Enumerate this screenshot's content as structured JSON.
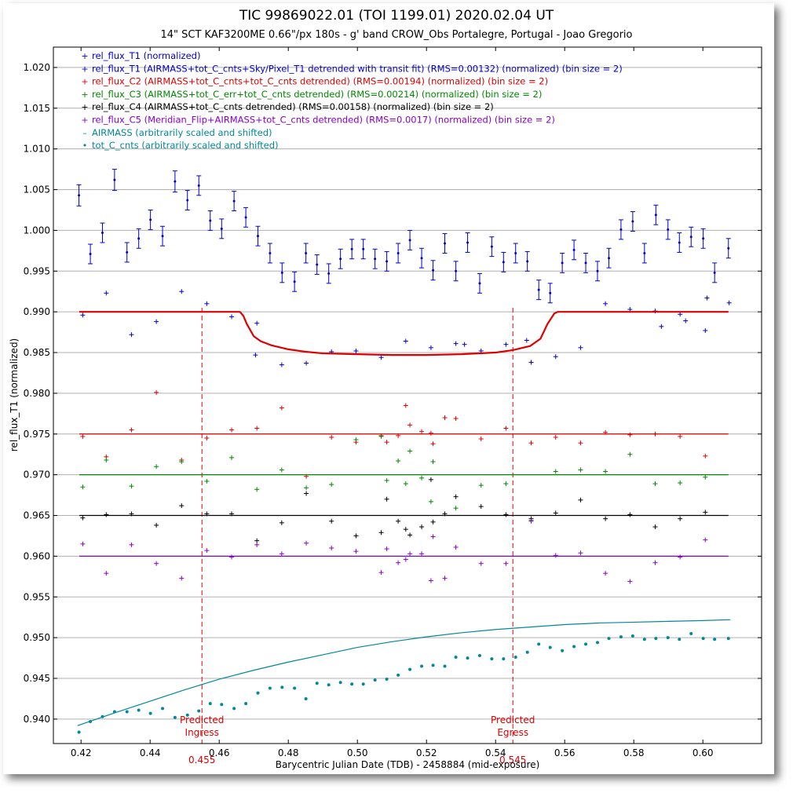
{
  "chart_data": {
    "type": "scatter",
    "title": "TIC 99869022.01 (TOI 1199.01)  2020.02.04 UT",
    "subtitle": "14\" SCT KAF3200ME 0.66\"/px 180s - g' band CROW_Obs Portalegre, Portugal - Joao Gregorio",
    "xlabel": "Barycentric Julian Date (TDB) - 2458884 (mid-exposure)",
    "ylabel": "rel_flux_T1 (normalized)",
    "xlim": [
      0.412,
      0.617
    ],
    "ylim": [
      0.937,
      1.0225
    ],
    "grid": true,
    "legend_position": "top-left",
    "xticks": [
      "0.42",
      "0.44",
      "0.46",
      "0.48",
      "0.50",
      "0.52",
      "0.54",
      "0.56",
      "0.58",
      "0.60"
    ],
    "yticks": [
      "0.940",
      "0.945",
      "0.950",
      "0.955",
      "0.960",
      "0.965",
      "0.970",
      "0.975",
      "0.980",
      "0.985",
      "0.990",
      "0.995",
      "1.000",
      "1.005",
      "1.010",
      "1.015",
      "1.020"
    ],
    "ingress": {
      "x": 0.455,
      "label_line1": "Predicted",
      "label_line2": "Ingress",
      "value_label": "0.455"
    },
    "egress": {
      "x": 0.545,
      "label_line1": "Predicted",
      "label_line2": "Egress",
      "value_label": "0.545"
    },
    "x_raw": [
      0.4205,
      0.4273,
      0.4346,
      0.4418,
      0.4491,
      0.4564,
      0.4636,
      0.4709,
      0.4781,
      0.4852,
      0.4925,
      0.4996,
      0.5069,
      0.514,
      0.5213,
      0.5285,
      0.5358,
      0.543,
      0.5503,
      0.5574,
      0.5646,
      0.5718,
      0.5789,
      0.5862,
      0.5934,
      0.6007
    ],
    "x_binned": [
      0.4194,
      0.4227,
      0.4262,
      0.4297,
      0.4333,
      0.4367,
      0.4401,
      0.4436,
      0.4472,
      0.4508,
      0.4541,
      0.4574,
      0.4607,
      0.4643,
      0.4677,
      0.4712,
      0.4747,
      0.4782,
      0.4818,
      0.4851,
      0.4883,
      0.4917,
      0.4951,
      0.4984,
      0.5017,
      0.5051,
      0.5085,
      0.5118,
      0.5152,
      0.5186,
      0.5219,
      0.5253,
      0.5285,
      0.5319,
      0.5354,
      0.5389,
      0.5423,
      0.5458,
      0.5492,
      0.5525,
      0.5558,
      0.5593,
      0.5627,
      0.5661,
      0.5695,
      0.5728,
      0.5763,
      0.5797,
      0.5831,
      0.5864,
      0.5899,
      0.5932,
      0.5966,
      0.6001,
      0.6034,
      0.6074
    ],
    "x_airmass": [
      0.419,
      0.43,
      0.44,
      0.45,
      0.46,
      0.47,
      0.48,
      0.49,
      0.5,
      0.51,
      0.52,
      0.53,
      0.54,
      0.55,
      0.56,
      0.57,
      0.58,
      0.59,
      0.6,
      0.608
    ],
    "x_totc": [
      0.4194,
      0.4227,
      0.4262,
      0.4297,
      0.4333,
      0.4367,
      0.4401,
      0.4436,
      0.4472,
      0.4508,
      0.4541,
      0.4574,
      0.4607,
      0.4643,
      0.4677,
      0.4712,
      0.4747,
      0.4782,
      0.4818,
      0.4851,
      0.4883,
      0.4917,
      0.4951,
      0.4984,
      0.5017,
      0.5051,
      0.5085,
      0.5118,
      0.5152,
      0.5186,
      0.5219,
      0.5253,
      0.5285,
      0.5319,
      0.5354,
      0.5389,
      0.5423,
      0.5458,
      0.5492,
      0.5525,
      0.5558,
      0.5593,
      0.5627,
      0.5661,
      0.5695,
      0.5728,
      0.5763,
      0.5797,
      0.5831,
      0.5864,
      0.5899,
      0.5932,
      0.5966,
      0.6001,
      0.6034,
      0.6074
    ],
    "x_model": [
      0.4195,
      0.455,
      0.466,
      0.467,
      0.468,
      0.47,
      0.472,
      0.475,
      0.48,
      0.485,
      0.49,
      0.5,
      0.51,
      0.52,
      0.53,
      0.54,
      0.545,
      0.55,
      0.553,
      0.555,
      0.557,
      0.558,
      0.6074
    ],
    "series": [
      {
        "name": "rel_flux_T1 (normalized)",
        "color": "#0000cc",
        "marker": "errorbar",
        "values": [
          1.0043,
          0.9971,
          0.9997,
          1.0062,
          0.9973,
          0.999,
          1.0013,
          0.9993,
          1.006,
          1.0037,
          1.0055,
          1.0012,
          1.0002,
          1.0036,
          1.0016,
          0.9993,
          0.9972,
          0.9948,
          0.9937,
          0.9972,
          0.9958,
          0.9947,
          0.9965,
          0.9977,
          0.9977,
          0.9965,
          0.9962,
          0.9972,
          0.9988,
          0.9966,
          0.9951,
          0.9984,
          0.995,
          0.9985,
          0.9935,
          0.998,
          0.9961,
          0.9972,
          0.9962,
          0.9927,
          0.9923,
          0.996,
          0.9976,
          0.996,
          0.995,
          0.9966,
          1.0001,
          1.0011,
          0.9972,
          1.0019,
          1.0001,
          0.9985,
          0.9992,
          0.999,
          0.9948,
          0.9978
        ],
        "errors": [
          0.0013,
          0.0012,
          0.0012,
          0.0013,
          0.0012,
          0.0012,
          0.0012,
          0.0012,
          0.0013,
          0.0012,
          0.0012,
          0.0012,
          0.0012,
          0.0012,
          0.0012,
          0.0012,
          0.0012,
          0.0012,
          0.0012,
          0.0012,
          0.0012,
          0.0012,
          0.0012,
          0.0012,
          0.0012,
          0.0012,
          0.0012,
          0.0012,
          0.0012,
          0.0012,
          0.0012,
          0.0012,
          0.0012,
          0.0012,
          0.0012,
          0.0012,
          0.0012,
          0.0012,
          0.0012,
          0.0012,
          0.0012,
          0.0012,
          0.0012,
          0.0012,
          0.0012,
          0.0012,
          0.0012,
          0.0012,
          0.0012,
          0.0012,
          0.0012,
          0.0012,
          0.0012,
          0.0012,
          0.0012,
          0.0012
        ]
      },
      {
        "name": "rel_flux_T1 (AIRMASS+tot_C_cnts+Sky/Pixel_T1 detrended with transit fit) (RMS=0.00132) (normalized) (bin size = 2)",
        "color": "#0000cc",
        "marker": "plus",
        "x_key": "x_raw",
        "values": [
          0.9896,
          0.9923,
          0.9872,
          0.9888,
          0.9925,
          0.991,
          0.9894,
          0.9886,
          0.9835,
          0.9837,
          0.9851,
          0.9852,
          0.9844,
          0.9864,
          0.9856,
          0.9861,
          0.9852,
          0.986,
          0.9838,
          0.9845,
          0.9856,
          0.991,
          0.9903,
          0.9901,
          0.9897,
          0.9877
        ],
        "extra": [
          [
            0.4705,
            0.9847
          ],
          [
            0.595,
            0.9889
          ],
          [
            0.6012,
            0.9917
          ],
          [
            0.6076,
            0.9911
          ],
          [
            0.588,
            0.9882
          ],
          [
            0.531,
            0.986
          ],
          [
            0.549,
            0.9865
          ]
        ]
      },
      {
        "name": "rel_flux_C2 (AIRMASS+tot_C_cnts+tot_C_cnts detrended) (RMS=0.00194) (normalized) (bin size = 2)",
        "color": "#dd0000",
        "marker": "plus",
        "offset": 0.975,
        "values": [
          0.9747,
          0.9722,
          0.9755,
          0.9801,
          0.9718,
          0.9745,
          0.9755,
          0.9757,
          0.9782,
          0.9698,
          0.9746,
          0.974,
          0.9748,
          0.9785,
          0.9751,
          0.9769,
          0.9744,
          0.9757,
          0.9739,
          0.9746,
          0.9739,
          0.9752,
          0.9749,
          0.975,
          0.9747,
          0.9723,
          0.974,
          0.9748,
          0.9761,
          0.9753,
          0.9738,
          0.977
        ]
      },
      {
        "name": "rel_flux_C3 (AIRMASS+tot_C_err+tot_C_cnts detrended) (RMS=0.00214) (normalized) (bin size = 2)",
        "color": "#008800",
        "marker": "plus",
        "offset": 0.97,
        "values": [
          0.9685,
          0.9718,
          0.9686,
          0.971,
          0.9716,
          0.9692,
          0.9721,
          0.9682,
          0.9706,
          0.9684,
          0.9688,
          0.9743,
          0.9747,
          0.9689,
          0.9667,
          0.9659,
          0.9687,
          0.9689,
          0.9644,
          0.9704,
          0.9706,
          0.9704,
          0.9725,
          0.9689,
          0.969,
          0.9697,
          0.9693,
          0.9717,
          0.9729,
          0.9696,
          0.9716
        ]
      },
      {
        "name": "rel_flux_C4 (AIRMASS+tot_C_cnts detrended) (RMS=0.00158) (normalized) (bin size = 2)",
        "color": "#000000",
        "marker": "plus",
        "offset": 0.965,
        "values": [
          0.9647,
          0.9651,
          0.9652,
          0.9638,
          0.9662,
          0.9652,
          0.9652,
          0.9619,
          0.9641,
          0.9677,
          0.9643,
          0.9625,
          0.9629,
          0.9633,
          0.9694,
          0.9673,
          0.9661,
          0.9651,
          0.9646,
          0.9653,
          0.9669,
          0.9646,
          0.9651,
          0.9636,
          0.9646,
          0.9654,
          0.967,
          0.9643,
          0.9626,
          0.9636,
          0.9642,
          0.9652
        ]
      },
      {
        "name": "rel_flux_C5 (Meridian_Flip+AIRMASS+tot_C_cnts detrended) (RMS=0.0017) (normalized) (bin size = 2)",
        "color": "#8800cc",
        "marker": "plus",
        "offset": 0.96,
        "values": [
          0.9615,
          0.9579,
          0.9614,
          0.9591,
          0.9573,
          0.9607,
          0.9599,
          0.9614,
          0.9603,
          0.9616,
          0.961,
          0.9606,
          0.958,
          0.9596,
          0.957,
          0.9611,
          0.9591,
          0.9591,
          0.9643,
          0.9601,
          0.9604,
          0.9579,
          0.9569,
          0.9592,
          0.9599,
          0.962,
          0.9609,
          0.9592,
          0.9603,
          0.9603,
          0.9624,
          0.9573
        ]
      },
      {
        "name": "AIRMASS (arbitrarily scaled and shifted)",
        "color": "#008899",
        "marker": "line",
        "values": [
          0.9392,
          0.9408,
          0.9422,
          0.9436,
          0.9449,
          0.946,
          0.947,
          0.9479,
          0.9488,
          0.9495,
          0.9501,
          0.9506,
          0.951,
          0.9513,
          0.9516,
          0.9518,
          0.9519,
          0.952,
          0.9521,
          0.9522
        ]
      },
      {
        "name": "tot_C_cnts (arbitrarily scaled and shifted)",
        "color": "#008899",
        "marker": "dot",
        "values": [
          0.9384,
          0.9397,
          0.9403,
          0.9409,
          0.9409,
          0.9411,
          0.9407,
          0.9413,
          0.9402,
          0.9405,
          0.941,
          0.9419,
          0.9418,
          0.9413,
          0.9419,
          0.9432,
          0.9438,
          0.9439,
          0.9438,
          0.9425,
          0.9444,
          0.9442,
          0.9445,
          0.9443,
          0.9443,
          0.9448,
          0.9449,
          0.9454,
          0.9461,
          0.9465,
          0.9466,
          0.9465,
          0.9476,
          0.9475,
          0.9478,
          0.9474,
          0.9474,
          0.9476,
          0.9482,
          0.9492,
          0.9488,
          0.9484,
          0.9489,
          0.9492,
          0.9494,
          0.9499,
          0.9501,
          0.9502,
          0.9498,
          0.9499,
          0.95,
          0.9498,
          0.9505,
          0.9499,
          0.9498,
          0.9499
        ]
      },
      {
        "name": "model_T1",
        "color": "#dd0000",
        "marker": "model",
        "x_key": "x_model",
        "values": [
          0.99,
          0.99,
          0.99,
          0.9895,
          0.9885,
          0.987,
          0.9864,
          0.9859,
          0.9854,
          0.9851,
          0.9849,
          0.9848,
          0.9847,
          0.9847,
          0.9848,
          0.985,
          0.9853,
          0.9858,
          0.9867,
          0.9885,
          0.9898,
          0.99,
          0.99
        ]
      }
    ],
    "legend": [
      {
        "label": "rel_flux_T1 (normalized)",
        "color": "#0000cc",
        "marker": "+"
      },
      {
        "label": "rel_flux_T1 (AIRMASS+tot_C_cnts+Sky/Pixel_T1 detrended with transit fit) (RMS=0.00132) (normalized) (bin size = 2)",
        "color": "#0000cc",
        "marker": "+"
      },
      {
        "label": "rel_flux_C2 (AIRMASS+tot_C_cnts+tot_C_cnts detrended) (RMS=0.00194) (normalized) (bin size = 2)",
        "color": "#dd0000",
        "marker": "+"
      },
      {
        "label": "rel_flux_C3 (AIRMASS+tot_C_err+tot_C_cnts detrended) (RMS=0.00214) (normalized) (bin size = 2)",
        "color": "#008800",
        "marker": "+"
      },
      {
        "label": "rel_flux_C4 (AIRMASS+tot_C_cnts detrended) (RMS=0.00158) (normalized) (bin size = 2)",
        "color": "#000000",
        "marker": "+"
      },
      {
        "label": "rel_flux_C5 (Meridian_Flip+AIRMASS+tot_C_cnts detrended) (RMS=0.0017) (normalized) (bin size = 2)",
        "color": "#8800cc",
        "marker": "+"
      },
      {
        "label": "AIRMASS (arbitrarily scaled and shifted)",
        "color": "#008899",
        "marker": "–"
      },
      {
        "label": "tot_C_cnts (arbitrarily scaled and shifted)",
        "color": "#008899",
        "marker": "•"
      }
    ],
    "colors": {
      "grid": "#b0b0b0",
      "frame": "#000000"
    }
  }
}
